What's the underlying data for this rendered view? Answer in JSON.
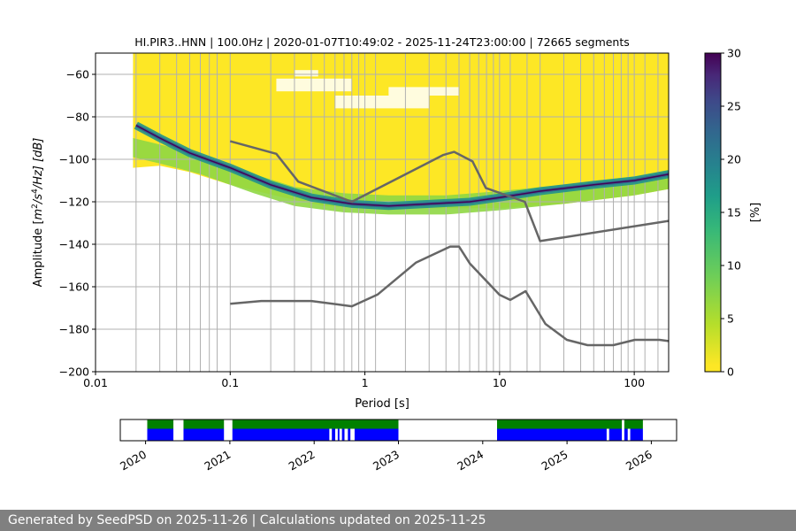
{
  "chart_data": [
    {
      "type": "heatmap",
      "title": "HI.PIR3..HNN | 100.0Hz | 2020-01-07T10:49:02 - 2025-11-24T23:00:00 | 72665 segments",
      "xlabel": "Period [s]",
      "ylabel_parts": [
        "Amplitude [",
        "m",
        "2",
        "/",
        "s",
        "4",
        "/Hz] [dB]"
      ],
      "x_scale": "log",
      "xlim": [
        0.01,
        180
      ],
      "ylim": [
        -200,
        -50
      ],
      "x_ticks": [
        {
          "v": 0.01,
          "label": "0.01"
        },
        {
          "v": 0.1,
          "label": "0.1"
        },
        {
          "v": 1,
          "label": "1"
        },
        {
          "v": 10,
          "label": "10"
        },
        {
          "v": 100,
          "label": "100"
        }
      ],
      "y_ticks": [
        -60,
        -80,
        -100,
        -120,
        -140,
        -160,
        -180,
        -200
      ],
      "grid": true,
      "grid_periods": [
        0.02,
        0.03,
        0.04,
        0.05,
        0.06,
        0.07,
        0.08,
        0.1,
        0.2,
        0.3,
        0.4,
        0.5,
        0.6,
        0.7,
        0.8,
        0.9,
        1,
        1.2,
        2,
        3,
        4,
        5,
        6,
        7,
        8,
        9,
        10,
        12,
        16,
        20,
        30,
        40,
        50,
        60,
        70,
        80,
        90,
        100,
        120,
        150
      ],
      "colorbar": {
        "label": "[%]",
        "min": 0,
        "max": 30,
        "ticks": [
          0,
          5,
          10,
          15,
          20,
          25,
          30
        ]
      },
      "ppsd_mode": {
        "name": "mode",
        "x": [
          0.02,
          0.03,
          0.05,
          0.1,
          0.2,
          0.4,
          0.8,
          1.5,
          3,
          6,
          10,
          20,
          50,
          100,
          180
        ],
        "y": [
          -84,
          -90,
          -97,
          -104,
          -112,
          -118,
          -121,
          -122,
          -121,
          -120,
          -118,
          -115,
          -112,
          -110,
          -107
        ]
      },
      "noise_models": [
        {
          "name": "high noise model",
          "x": [
            0.1,
            0.22,
            0.32,
            0.8,
            3.8,
            4.6,
            6.3,
            7.9,
            15.4,
            20,
            180
          ],
          "y": [
            -91.5,
            -97.4,
            -110.5,
            -120,
            -98,
            -96.5,
            -101,
            -113.5,
            -120,
            -138.5,
            -129
          ]
        },
        {
          "name": "low noise model",
          "x": [
            0.1,
            0.17,
            0.4,
            0.8,
            1.24,
            2.4,
            4.3,
            5.0,
            6.0,
            10,
            12,
            15.6,
            21.9,
            31.6,
            45,
            70,
            101,
            154,
            180
          ],
          "y": [
            -168,
            -166.7,
            -166.7,
            -169.2,
            -163.7,
            -148.6,
            -141.1,
            -141.1,
            -149,
            -163.8,
            -166.2,
            -162.1,
            -177.5,
            -185,
            -187.5,
            -187.5,
            -185,
            -185,
            -185.6
          ]
        }
      ]
    },
    {
      "type": "timeline",
      "x_ticks": [
        "2020",
        "2021",
        "2022",
        "2023",
        "2024",
        "2025",
        "2026"
      ],
      "start_year": 2019.7,
      "end_year": 2026.3,
      "colors": {
        "data": "#0000ff",
        "processed": "#008000"
      },
      "data_segments": [
        [
          2020.02,
          2020.33
        ],
        [
          2020.45,
          2020.93
        ],
        [
          2021.03,
          2022.18
        ],
        [
          2022.21,
          2022.25
        ],
        [
          2022.28,
          2022.3
        ],
        [
          2022.33,
          2022.36
        ],
        [
          2022.4,
          2022.43
        ],
        [
          2022.48,
          2023.0
        ],
        [
          2024.17,
          2025.47
        ],
        [
          2025.5,
          2025.65
        ],
        [
          2025.68,
          2025.72
        ],
        [
          2025.75,
          2025.9
        ]
      ],
      "processed_segments": [
        [
          2020.02,
          2020.33
        ],
        [
          2020.45,
          2020.93
        ],
        [
          2021.03,
          2023.0
        ],
        [
          2024.17,
          2025.65
        ],
        [
          2025.68,
          2025.9
        ]
      ]
    }
  ],
  "footer": {
    "text": "Generated by SeedPSD on 2025-11-26 | Calculations updated on 2025-11-25"
  }
}
